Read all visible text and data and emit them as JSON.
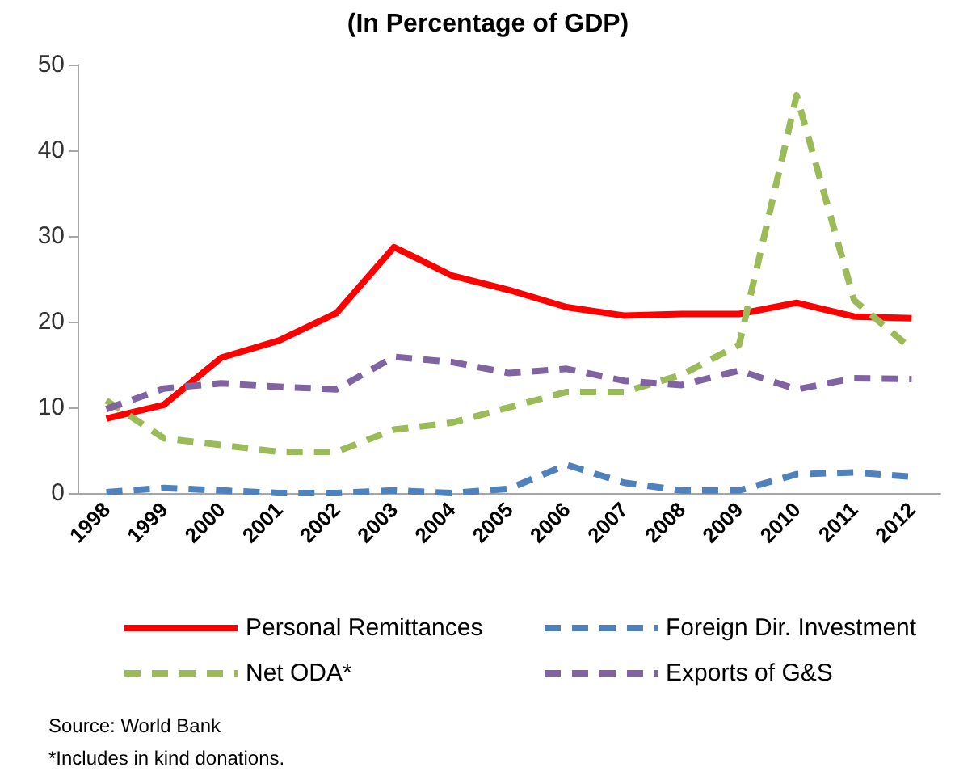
{
  "chart_data": {
    "type": "line",
    "title": "(In Percentage of GDP)",
    "categories": [
      "1998",
      "1999",
      "2000",
      "2001",
      "2002",
      "2003",
      "2004",
      "2005",
      "2006",
      "2007",
      "2008",
      "2009",
      "2010",
      "2011",
      "2012"
    ],
    "series": [
      {
        "name": "Personal Remittances",
        "color": "#ff0000",
        "line_style": "solid",
        "values": [
          8.7,
          10.3,
          15.8,
          17.8,
          21,
          28.7,
          25.4,
          23.7,
          21.7,
          20.7,
          20.9,
          20.9,
          22.2,
          20.6,
          20.4
        ]
      },
      {
        "name": "Foreign Dir. Investment",
        "color": "#4f81bd",
        "line_style": "dashed",
        "values": [
          0.1,
          0.6,
          0.3,
          0,
          0,
          0.3,
          0,
          0.5,
          3.3,
          1.2,
          0.3,
          0.3,
          2.2,
          2.4,
          1.9
        ]
      },
      {
        "name": "Net ODA*",
        "color": "#9bbb59",
        "line_style": "dashed",
        "values": [
          10.8,
          6.4,
          5.6,
          4.8,
          4.8,
          7.4,
          8.2,
          10,
          11.8,
          11.8,
          13.8,
          17.3,
          46.4,
          22.5,
          16.8
        ]
      },
      {
        "name": "Exports of G&S",
        "color": "#8064a2",
        "line_style": "dashed",
        "values": [
          9.8,
          12.2,
          12.8,
          12.4,
          12.1,
          15.9,
          15.3,
          14,
          14.5,
          13.1,
          12.6,
          14.3,
          12.1,
          13.4,
          13.3
        ]
      }
    ],
    "ylim": [
      0,
      50
    ],
    "yticks": [
      0,
      10,
      20,
      30,
      40,
      50
    ],
    "grid": false,
    "legend": "bottom",
    "marker": "none",
    "annotations": [
      "Source: World Bank",
      "*Includes in kind donations."
    ]
  }
}
